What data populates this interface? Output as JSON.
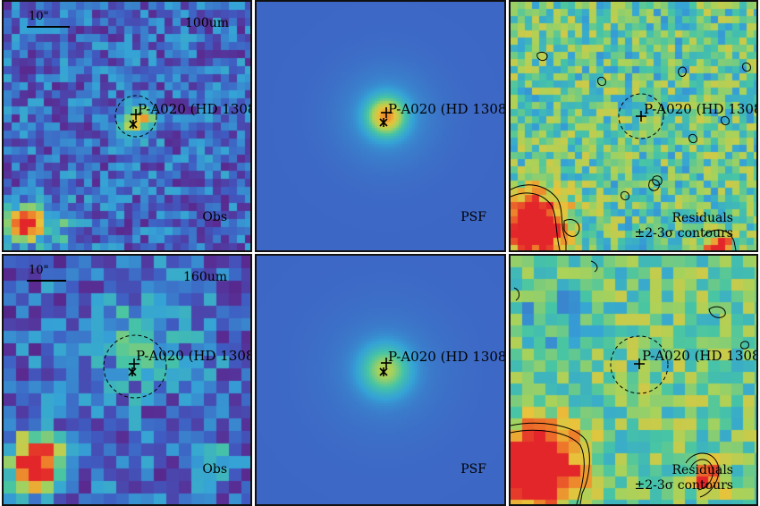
{
  "source_name": "P-A020 (HD 1308",
  "bands": [
    {
      "wavelength": "100um",
      "scale_bar": "10\""
    },
    {
      "wavelength": "160um",
      "scale_bar": "10\""
    }
  ],
  "panel_labels": {
    "observed": "Obs",
    "psf": "PSF",
    "residuals_line1": "Residuals",
    "residuals_line2": "±2-3σ contours"
  },
  "colormap": [
    "#3a1e6e",
    "#5a2a91",
    "#3f5cc2",
    "#35a3d6",
    "#47c5a4",
    "#a9d25a",
    "#e9c33a",
    "#ee7a2a",
    "#e3262a"
  ]
}
